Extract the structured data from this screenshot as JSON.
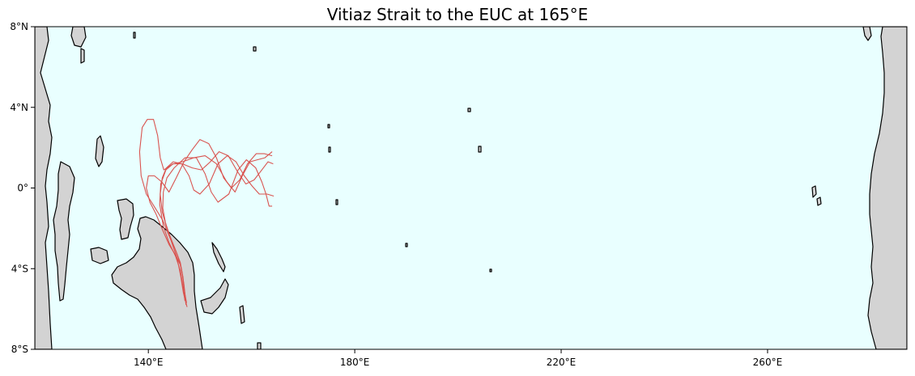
{
  "map": {
    "title": "Vitiaz Strait to the EUC at 165°E",
    "colors": {
      "ocean": "#e9ffff",
      "land": "#d3d3d3",
      "coastline": "#000000",
      "trajectory": "#d9534f"
    },
    "lon_range": [
      118,
      287
    ],
    "lat_range": [
      -8,
      8
    ],
    "x_ticks": [
      {
        "value": 140,
        "label": "140°E"
      },
      {
        "value": 180,
        "label": "180°E"
      },
      {
        "value": 220,
        "label": "220°E"
      },
      {
        "value": 260,
        "label": "260°E"
      }
    ],
    "y_ticks": [
      {
        "value": 8,
        "label": "8°N"
      },
      {
        "value": 4,
        "label": "4°N"
      },
      {
        "value": 0,
        "label": "0°"
      },
      {
        "value": -4,
        "label": "4°S"
      },
      {
        "value": -8,
        "label": "8°S"
      }
    ],
    "trajectories": [
      [
        [
          147.4,
          -5.7
        ],
        [
          146.9,
          -5.0
        ],
        [
          146.6,
          -4.3
        ],
        [
          146.2,
          -3.7
        ],
        [
          145.3,
          -3.1
        ],
        [
          144.2,
          -2.4
        ],
        [
          143.3,
          -1.7
        ],
        [
          142.8,
          -1.0
        ],
        [
          142.9,
          -0.2
        ],
        [
          143.6,
          0.5
        ],
        [
          145.0,
          1.0
        ],
        [
          147.1,
          1.5
        ],
        [
          149.3,
          1.5
        ],
        [
          151.0,
          0.7
        ],
        [
          152.2,
          -0.2
        ],
        [
          153.5,
          -0.7
        ],
        [
          155.6,
          -0.3
        ],
        [
          157.4,
          0.9
        ],
        [
          159.0,
          1.4
        ],
        [
          160.8,
          1.0
        ],
        [
          162.0,
          0.3
        ],
        [
          162.8,
          -0.3
        ],
        [
          163.4,
          -0.9
        ],
        [
          164.0,
          -0.9
        ]
      ],
      [
        [
          147.2,
          -5.5
        ],
        [
          146.9,
          -4.8
        ],
        [
          146.4,
          -4.0
        ],
        [
          145.6,
          -3.3
        ],
        [
          144.5,
          -2.6
        ],
        [
          143.5,
          -1.9
        ],
        [
          142.7,
          -1.2
        ],
        [
          142.3,
          -0.3
        ],
        [
          142.7,
          0.5
        ],
        [
          143.5,
          1.0
        ],
        [
          144.8,
          1.3
        ],
        [
          146.5,
          1.2
        ],
        [
          147.9,
          0.6
        ],
        [
          148.8,
          -0.1
        ],
        [
          150.0,
          -0.3
        ],
        [
          151.8,
          0.2
        ],
        [
          153.5,
          1.2
        ],
        [
          155.3,
          1.6
        ],
        [
          157.0,
          1.3
        ],
        [
          158.6,
          0.6
        ],
        [
          160.1,
          0.1
        ],
        [
          161.5,
          -0.3
        ],
        [
          163.0,
          -0.3
        ],
        [
          164.3,
          -0.4
        ]
      ],
      [
        [
          147.5,
          -5.9
        ],
        [
          146.8,
          -5.2
        ],
        [
          146.3,
          -4.4
        ],
        [
          145.6,
          -3.5
        ],
        [
          144.4,
          -2.6
        ],
        [
          142.8,
          -1.6
        ],
        [
          141.1,
          -0.9
        ],
        [
          139.6,
          -0.3
        ],
        [
          138.6,
          0.6
        ],
        [
          138.3,
          1.8
        ],
        [
          138.8,
          3.0
        ],
        [
          139.8,
          3.4
        ],
        [
          141.0,
          3.4
        ],
        [
          141.8,
          2.6
        ],
        [
          142.3,
          1.5
        ],
        [
          143.0,
          0.9
        ],
        [
          144.8,
          1.2
        ],
        [
          146.6,
          1.3
        ],
        [
          148.8,
          1.5
        ],
        [
          151.0,
          1.6
        ],
        [
          153.2,
          1.2
        ],
        [
          155.2,
          0.3
        ],
        [
          156.8,
          -0.2
        ],
        [
          158.2,
          0.6
        ],
        [
          159.7,
          1.3
        ],
        [
          161.1,
          1.4
        ],
        [
          162.6,
          1.5
        ],
        [
          164.0,
          1.8
        ]
      ],
      [
        [
          147.3,
          -5.8
        ],
        [
          147.0,
          -5.1
        ],
        [
          146.7,
          -4.4
        ],
        [
          146.2,
          -3.8
        ],
        [
          145.2,
          -3.3
        ],
        [
          144.0,
          -2.8
        ],
        [
          142.8,
          -2.1
        ],
        [
          141.5,
          -1.3
        ],
        [
          140.3,
          -0.7
        ],
        [
          139.6,
          0.0
        ],
        [
          140.0,
          0.6
        ],
        [
          141.2,
          0.6
        ],
        [
          142.6,
          0.3
        ],
        [
          144.0,
          -0.2
        ],
        [
          145.4,
          0.5
        ],
        [
          146.9,
          1.3
        ],
        [
          148.5,
          1.9
        ],
        [
          150.0,
          2.4
        ],
        [
          151.7,
          2.2
        ],
        [
          153.2,
          1.5
        ],
        [
          154.6,
          0.5
        ],
        [
          156.1,
          0.0
        ],
        [
          157.7,
          0.4
        ],
        [
          159.2,
          1.2
        ],
        [
          160.9,
          1.7
        ],
        [
          162.5,
          1.7
        ],
        [
          164.0,
          1.6
        ]
      ],
      [
        [
          147.1,
          -5.6
        ],
        [
          146.7,
          -4.9
        ],
        [
          146.2,
          -4.1
        ],
        [
          145.3,
          -3.4
        ],
        [
          144.0,
          -2.7
        ],
        [
          142.9,
          -1.9
        ],
        [
          142.2,
          -0.8
        ],
        [
          142.4,
          0.2
        ],
        [
          143.4,
          0.9
        ],
        [
          144.8,
          1.2
        ],
        [
          146.6,
          1.2
        ],
        [
          148.5,
          1.0
        ],
        [
          150.3,
          0.9
        ],
        [
          152.0,
          1.3
        ],
        [
          153.7,
          1.8
        ],
        [
          155.5,
          1.6
        ],
        [
          157.3,
          0.8
        ],
        [
          158.9,
          0.2
        ],
        [
          160.5,
          0.4
        ],
        [
          162.0,
          0.9
        ],
        [
          163.2,
          1.3
        ],
        [
          164.2,
          1.2
        ]
      ]
    ]
  }
}
